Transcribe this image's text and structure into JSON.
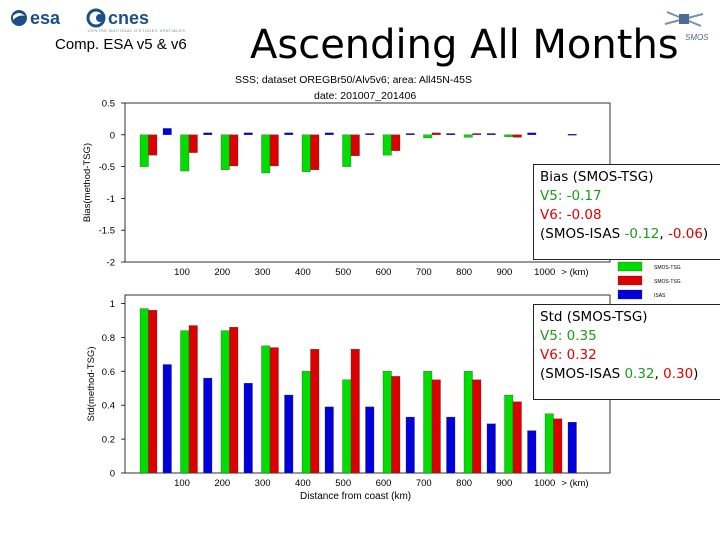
{
  "header": {
    "esa_logo_text": "esa",
    "cnes_logo_text": "cnes",
    "cnes_subtext": "CENTRE NATIONAL D'ETUDES SPATIALES",
    "comp_label": "Comp. ESA v5 & v6",
    "title": "Ascending All Months",
    "smos_logo_text": "SMOS"
  },
  "chart_head": {
    "line1": "SSS; dataset OREGBr50/Alv5v6; area: All45N-45S",
    "line2": "date: 201007_201406"
  },
  "colors": {
    "v5": "#00dd00",
    "v6": "#dd0000",
    "isas": "#0000dd",
    "text_green": "#1e9a1e",
    "text_red": "#e00000"
  },
  "legend": {
    "v5_label": "SMOS-TSG",
    "v6_label": "SMOS-TSG",
    "isas_label": "ISAS"
  },
  "bias_box": {
    "title": "Bias (SMOS-TSG)",
    "v5": "V5: -0.17",
    "v6": "V6: -0.08",
    "isas_prefix": "(SMOS-ISAS ",
    "isas_v5": "-0.12",
    "isas_sep": ", ",
    "isas_v6": "-0.06",
    "isas_suffix": ")"
  },
  "std_box": {
    "title": "Std (SMOS-TSG)",
    "v5": "V5: 0.35",
    "v6": "V6: 0.32",
    "isas_prefix": "(SMOS-ISAS ",
    "isas_v5": "0.32",
    "isas_sep": ", ",
    "isas_v6": "0.30",
    "isas_suffix": ")"
  },
  "chart_data": [
    {
      "type": "bar",
      "ylabel": "Bias(method-TSG)",
      "xlabel": "",
      "ylim": [
        -2,
        0.5
      ],
      "yticks": [
        0.5,
        0,
        -0.5,
        -1,
        -1.5,
        -2
      ],
      "ytick_labels": [
        "0.5",
        "0",
        "-0.5",
        "-1",
        "-1.5",
        "-2"
      ],
      "categories": [
        "100",
        "200",
        "300",
        "400",
        "500",
        "600",
        "700",
        "800",
        "900",
        "1000",
        "> (km)"
      ],
      "series": [
        {
          "name": "SMOS-TSG",
          "values": [
            -0.5,
            -0.57,
            -0.55,
            -0.6,
            -0.58,
            -0.5,
            -0.32,
            -0.05,
            -0.04,
            -0.03,
            null
          ]
        },
        {
          "name": "SMOS-TSG",
          "values": [
            -0.32,
            -0.28,
            -0.49,
            -0.49,
            -0.55,
            -0.33,
            -0.25,
            0.03,
            0.02,
            -0.04,
            null
          ]
        },
        {
          "name": "ISAS",
          "values": [
            0.1,
            0.03,
            0.03,
            0.03,
            0.03,
            0.02,
            0.02,
            0.02,
            0.02,
            0.03,
            0.01
          ]
        }
      ]
    },
    {
      "type": "bar",
      "ylabel": "Std(method-TSG)",
      "xlabel": "Distance from coast (km)",
      "ylim": [
        0,
        1.05
      ],
      "yticks": [
        1,
        0.8,
        0.6,
        0.4,
        0.2,
        0
      ],
      "ytick_labels": [
        "1",
        "0.8",
        "0.6",
        "0.4",
        "0.2",
        "0"
      ],
      "categories": [
        "100",
        "200",
        "300",
        "400",
        "500",
        "600",
        "700",
        "800",
        "900",
        "1000",
        "> (km)"
      ],
      "series": [
        {
          "name": "SMOS-TSG",
          "values": [
            0.97,
            0.84,
            0.84,
            0.75,
            0.6,
            0.55,
            0.6,
            0.6,
            0.6,
            0.46,
            0.35
          ]
        },
        {
          "name": "SMOS-TSG",
          "values": [
            0.96,
            0.87,
            0.86,
            0.74,
            0.73,
            0.73,
            0.57,
            0.55,
            0.55,
            0.42,
            0.32
          ]
        },
        {
          "name": "ISAS",
          "values": [
            0.64,
            0.56,
            0.53,
            0.46,
            0.39,
            0.39,
            0.33,
            0.33,
            0.29,
            0.25,
            0.3
          ]
        }
      ]
    }
  ]
}
